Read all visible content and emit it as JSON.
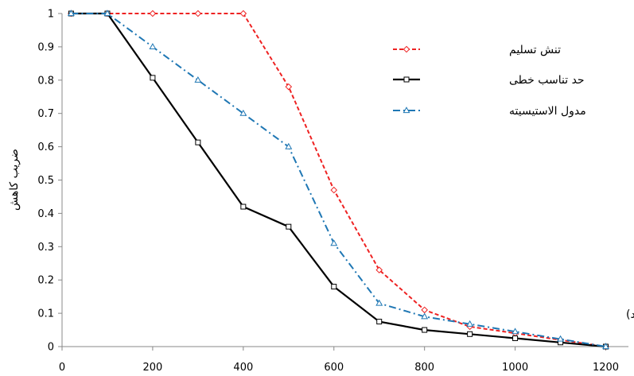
{
  "chart_data": {
    "type": "line",
    "title": "",
    "xlabel": "دما ( سانتی گراد)",
    "ylabel": "ضریب کاهش",
    "xlim": [
      0,
      1250
    ],
    "ylim": [
      0,
      1
    ],
    "xticks": [
      0,
      200,
      400,
      600,
      800,
      1000,
      1200
    ],
    "xtick_labels": [
      "0",
      "200",
      "400",
      "600",
      "800",
      "1000",
      "1200"
    ],
    "yticks": [
      0,
      0.1,
      0.2,
      0.3,
      0.4,
      0.5,
      0.6,
      0.7,
      0.8,
      0.9,
      1
    ],
    "ytick_labels": [
      "0",
      "0.1",
      "0.2",
      "0.3",
      "0.4",
      "0.5",
      "0.6",
      "0.7",
      "0.8",
      "0.9",
      "1"
    ],
    "grid": false,
    "legend_position": "top-right",
    "series": [
      {
        "name": "تنش تسلیم",
        "color": "#ee2222",
        "line_style": "dashed",
        "marker": "diamond",
        "x": [
          20,
          100,
          200,
          300,
          400,
          500,
          600,
          700,
          800,
          900,
          1000,
          1100,
          1200
        ],
        "y": [
          1,
          1,
          1,
          1,
          1,
          0.78,
          0.47,
          0.23,
          0.11,
          0.06,
          0.04,
          0.02,
          0
        ]
      },
      {
        "name": "حد تناسب خطی",
        "color": "#000000",
        "line_style": "solid",
        "marker": "square",
        "x": [
          20,
          100,
          200,
          300,
          400,
          500,
          600,
          700,
          800,
          900,
          1000,
          1100,
          1200
        ],
        "y": [
          1,
          1,
          0.807,
          0.613,
          0.42,
          0.36,
          0.18,
          0.075,
          0.05,
          0.0375,
          0.025,
          0.0125,
          0
        ]
      },
      {
        "name": "مدول الاستیسیته",
        "color": "#1f77b4",
        "line_style": "dashdot",
        "marker": "triangle",
        "x": [
          20,
          100,
          200,
          300,
          400,
          500,
          600,
          700,
          800,
          900,
          1000,
          1100,
          1200
        ],
        "y": [
          1,
          1,
          0.9,
          0.8,
          0.7,
          0.6,
          0.31,
          0.13,
          0.09,
          0.0675,
          0.045,
          0.0225,
          0
        ]
      }
    ]
  }
}
